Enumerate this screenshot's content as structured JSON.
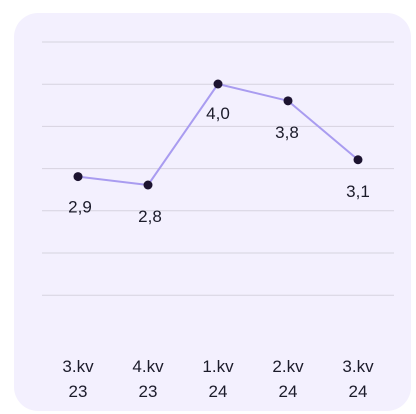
{
  "chart_data": {
    "type": "line",
    "title": "",
    "xlabel": "",
    "ylabel": "",
    "categories": [
      [
        "3.kv",
        "23"
      ],
      [
        "4.kv",
        "23"
      ],
      [
        "1.kv",
        "24"
      ],
      [
        "2.kv",
        "24"
      ],
      [
        "3.kv",
        "24"
      ]
    ],
    "series": [
      {
        "values": [
          2.9,
          2.8,
          4.0,
          3.8,
          3.1
        ],
        "labels": [
          "2,9",
          "2,8",
          "4,0",
          "3,8",
          "3,1"
        ]
      }
    ],
    "ylim": [
      1.8,
      4.4
    ],
    "grid": true,
    "colors": {
      "background": "#f3f0fe",
      "grid": "#d6d3df",
      "line": "#a99cf0",
      "marker": "#1c1330",
      "text": "#1b1b2a"
    }
  }
}
